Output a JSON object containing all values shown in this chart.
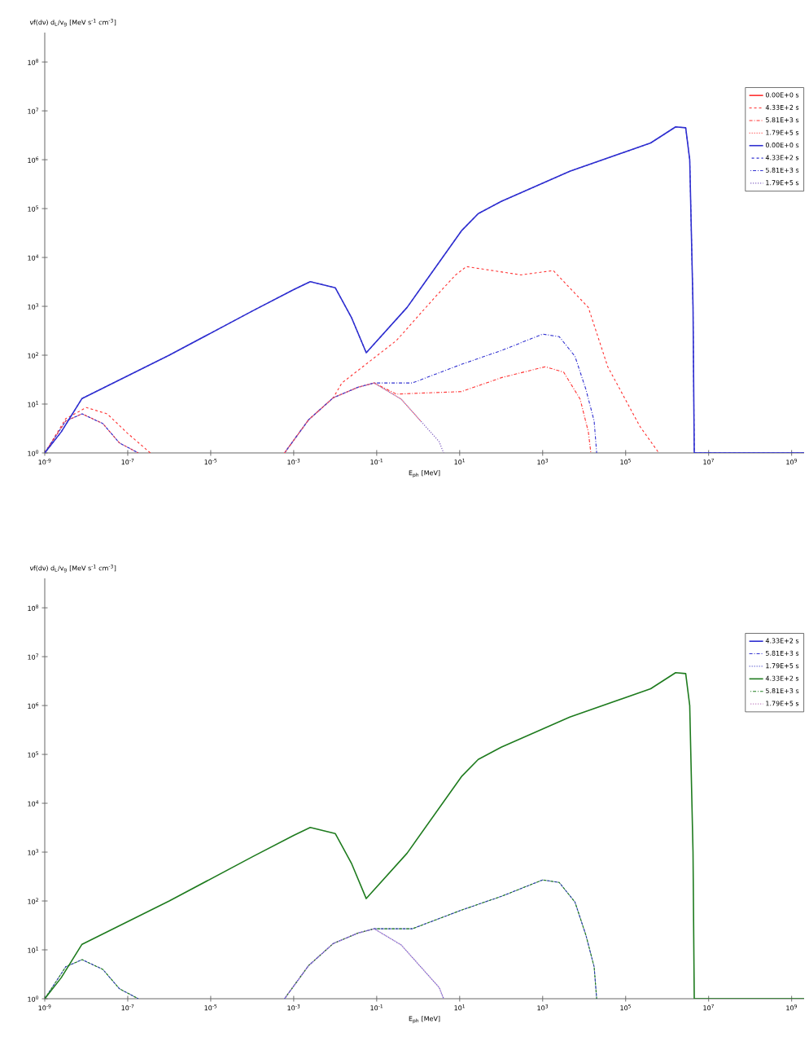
{
  "chart_data": [
    {
      "type": "line",
      "log": "xy",
      "xlabel": "E$_{ph}$ [MeV]",
      "ylabel": "νf(dν) d$_{L}$/v$_{g}$ [MeV s$^{-1}$ cm$^{-3}$]",
      "legend": "top right",
      "xlim": [
        1e-09,
        2000000000.0
      ],
      "ylim": [
        1,
        400000000.0
      ],
      "xticks": [
        {
          "value": 1e-09,
          "label": "10$^{-9}$"
        },
        {
          "value": 1e-07,
          "label": "10$^{-7}$"
        },
        {
          "value": 1e-05,
          "label": "10$^{-5}$"
        },
        {
          "value": 0.001,
          "label": "10$^{-3}$"
        },
        {
          "value": 0.1,
          "label": "10$^{-1}$"
        },
        {
          "value": 10,
          "label": "10$^{1}$"
        },
        {
          "value": 1000,
          "label": "10$^{3}$"
        },
        {
          "value": 100000.0,
          "label": "10$^{5}$"
        },
        {
          "value": 10000000.0,
          "label": "10$^{7}$"
        },
        {
          "value": 1000000000.0,
          "label": "10$^{9}$"
        }
      ],
      "yticks": [
        {
          "value": 1,
          "label": "10$^{0}$"
        },
        {
          "value": 10,
          "label": "10$^{1}$"
        },
        {
          "value": 100,
          "label": "10$^{2}$"
        },
        {
          "value": 1000,
          "label": "10$^{3}$"
        },
        {
          "value": 10000.0,
          "label": "10$^{4}$"
        },
        {
          "value": 100000.0,
          "label": "10$^{5}$"
        },
        {
          "value": 1000000.0,
          "label": "10$^{6}$"
        },
        {
          "value": 10000000.0,
          "label": "10$^{7}$"
        },
        {
          "value": 100000000.0,
          "label": "10$^{8}$"
        }
      ],
      "series": [
        {
          "name": "0.00E+0 s",
          "color": "#ff3030",
          "line_style": "solid"
        },
        {
          "name": "4.33E+2 s",
          "color": "#ff3030",
          "line_style": "dashed",
          "x": [
            1e-09,
            3.2e-09,
            1e-08,
            3.2e-08,
            1e-07,
            3.5e-07,
            1e-05,
            0.0006,
            0.0023,
            0.009,
            0.0145,
            0.3,
            2.3,
            8,
            14.5,
            300,
            1800,
            12600,
            37000,
            220000.0,
            630000.0
          ],
          "values": [
            1,
            5,
            8.5,
            6.3,
            2.5,
            1,
            null,
            1,
            4.8,
            13.5,
            27,
            200,
            1400,
            4400,
            6500,
            4400,
            5400,
            950,
            58,
            3.5,
            1
          ]
        },
        {
          "name": "5.81E+3 s",
          "color": "#ff3030",
          "line_style": "dashdot",
          "x": [
            1e-09,
            3.2e-09,
            7.9e-09,
            2.5e-08,
            6.3e-08,
            1.8e-07,
            1e-05,
            0.0006,
            0.0023,
            0.009,
            0.035,
            0.087,
            0.3,
            11,
            105,
            1150,
            3200,
            8000,
            12600,
            14500
          ],
          "values": [
            1,
            4.5,
            6.3,
            4,
            1.6,
            1,
            null,
            1,
            4.8,
            13.5,
            22,
            27,
            16,
            18,
            35,
            58,
            45,
            12.6,
            2.7,
            1
          ]
        },
        {
          "name": "1.79E+5 s",
          "color": "#ff6060",
          "line_style": "dotted",
          "x": [
            0.0006,
            0.0023,
            0.009,
            0.035,
            0.087,
            0.39,
            1.15
          ],
          "values": [
            1,
            4.8,
            13.5,
            22,
            27,
            12.6,
            4.5
          ]
        },
        {
          "name": "0.00E+0 s",
          "color": "#3030d0",
          "line_style": "solid",
          "x": [
            1e-09,
            2.5e-09,
            7.9e-09,
            1e-06,
            0.0001,
            0.001,
            0.0025,
            0.01,
            0.025,
            0.056,
            0.54,
            11,
            28,
            100,
            4500,
            400000.0,
            1600000.0,
            2800000.0,
            3500000.0,
            4200000.0,
            4500000.0,
            2000000000.0
          ],
          "values": [
            1,
            2.7,
            13,
            100,
            800,
            2200,
            3200,
            2400,
            575,
            112,
            950,
            35000,
            79000,
            140000,
            580000,
            2200000,
            4700000,
            4500000,
            1000000,
            1000,
            1,
            1
          ]
        },
        {
          "name": "4.33E+2 s",
          "color": "#3030d0",
          "line_style": "dashed",
          "x": [
            1e-09,
            2.5e-09,
            7.9e-09,
            1e-06,
            0.0001,
            0.001,
            0.0025,
            0.01,
            0.025,
            0.056,
            0.54,
            11,
            28,
            100,
            4500,
            400000.0,
            1600000.0,
            2800000.0,
            3500000.0,
            4200000.0,
            4500000.0,
            2000000000.0
          ],
          "values": [
            1,
            2.7,
            13,
            100,
            800,
            2200,
            3200,
            2400,
            575,
            112,
            950,
            35000,
            79000,
            140000,
            580000,
            2200000,
            4700000,
            4500000,
            1000000,
            1000,
            1,
            1
          ]
        },
        {
          "name": "5.81E+3 s",
          "color": "#3030d0",
          "line_style": "dashdot",
          "x": [
            1e-09,
            3.2e-09,
            7.9e-09,
            2.5e-08,
            6.3e-08,
            1.8e-07,
            1e-05,
            0.0006,
            0.0023,
            0.009,
            0.035,
            0.087,
            0.72,
            11,
            105,
            1000,
            2500,
            6000,
            11000,
            17400,
            20000
          ],
          "values": [
            1,
            4.5,
            6.3,
            4,
            1.6,
            1,
            null,
            1,
            4.8,
            13.5,
            22,
            27,
            27,
            65,
            126,
            270,
            240,
            95,
            20,
            4.5,
            1
          ]
        },
        {
          "name": "1.79E+5 s",
          "color": "#8060c0",
          "line_style": "dotted",
          "x": [
            0.0006,
            0.0023,
            0.009,
            0.035,
            0.087,
            0.39,
            1.15,
            3.2,
            4.1
          ],
          "values": [
            1,
            4.8,
            13.5,
            22,
            27,
            12.6,
            4.5,
            1.7,
            1
          ]
        }
      ]
    },
    {
      "type": "line",
      "log": "xy",
      "xlabel": "E$_{ph}$ [MeV]",
      "ylabel": "νf(dν) d$_{L}$/v$_{g}$ [MeV s$^{-1}$ cm$^{-3}$]",
      "legend": "top right",
      "xlim": [
        1e-09,
        2000000000.0
      ],
      "ylim": [
        1,
        400000000.0
      ],
      "xticks": [
        {
          "value": 1e-09,
          "label": "10$^{-9}$"
        },
        {
          "value": 1e-07,
          "label": "10$^{-7}$"
        },
        {
          "value": 1e-05,
          "label": "10$^{-5}$"
        },
        {
          "value": 0.001,
          "label": "10$^{-3}$"
        },
        {
          "value": 0.1,
          "label": "10$^{-1}$"
        },
        {
          "value": 10,
          "label": "10$^{1}$"
        },
        {
          "value": 1000,
          "label": "10$^{3}$"
        },
        {
          "value": 100000.0,
          "label": "10$^{5}$"
        },
        {
          "value": 10000000.0,
          "label": "10$^{7}$"
        },
        {
          "value": 1000000000.0,
          "label": "10$^{9}$"
        }
      ],
      "yticks": [
        {
          "value": 1,
          "label": "10$^{0}$"
        },
        {
          "value": 10,
          "label": "10$^{1}$"
        },
        {
          "value": 100,
          "label": "10$^{2}$"
        },
        {
          "value": 1000,
          "label": "10$^{3}$"
        },
        {
          "value": 10000.0,
          "label": "10$^{4}$"
        },
        {
          "value": 100000.0,
          "label": "10$^{5}$"
        },
        {
          "value": 1000000.0,
          "label": "10$^{6}$"
        },
        {
          "value": 10000000.0,
          "label": "10$^{7}$"
        },
        {
          "value": 100000000.0,
          "label": "10$^{8}$"
        }
      ],
      "series": [
        {
          "name": "4.33E+2 s",
          "color": "#3030d0",
          "line_style": "solid"
        },
        {
          "name": "5.81E+3 s",
          "color": "#3030d0",
          "line_style": "dashdot",
          "x": [
            1e-09,
            3.2e-09,
            7.9e-09,
            2.5e-08,
            6.3e-08,
            1.8e-07,
            1e-05,
            0.0006,
            0.0023,
            0.009,
            0.035,
            0.087,
            0.72,
            11,
            105,
            1000,
            2500,
            6000,
            11000,
            17400,
            20000
          ],
          "values": [
            1,
            4.5,
            6.3,
            4,
            1.6,
            1,
            null,
            1,
            4.8,
            13.5,
            22,
            27,
            27,
            65,
            126,
            270,
            240,
            95,
            20,
            4.5,
            1
          ]
        },
        {
          "name": "1.79E+5 s",
          "color": "#6060d0",
          "line_style": "dotted",
          "x": [
            0.0006,
            0.0023,
            0.009,
            0.035,
            0.087,
            0.39,
            1.15,
            3.2,
            4.1
          ],
          "values": [
            1,
            4.8,
            13.5,
            22,
            27,
            12.6,
            4.5,
            1.7,
            1
          ]
        },
        {
          "name": "4.33E+2 s",
          "color": "#1e7b1e",
          "line_style": "solid",
          "x": [
            1e-09,
            2.5e-09,
            7.9e-09,
            1e-06,
            0.0001,
            0.001,
            0.0025,
            0.01,
            0.025,
            0.056,
            0.54,
            11,
            28,
            100,
            4500,
            400000.0,
            1600000.0,
            2800000.0,
            3500000.0,
            4200000.0,
            4500000.0,
            2000000000.0
          ],
          "values": [
            1,
            2.7,
            13,
            100,
            800,
            2200,
            3200,
            2400,
            575,
            112,
            950,
            35000,
            79000,
            140000,
            580000,
            2200000,
            4700000,
            4500000,
            1000000,
            1000,
            1,
            1
          ]
        },
        {
          "name": "5.81E+3 s",
          "color": "#1e7b1e",
          "line_style": "dashdot",
          "x": [
            1e-09,
            3.2e-09,
            7.9e-09,
            2.5e-08,
            6.3e-08,
            1.8e-07,
            1e-05,
            0.0006,
            0.0023,
            0.009,
            0.035,
            0.087,
            0.72,
            11,
            105,
            1000,
            2500,
            6000,
            11000,
            17400,
            20000
          ],
          "values": [
            1,
            4.5,
            6.3,
            4,
            1.6,
            1,
            null,
            1,
            4.8,
            13.5,
            22,
            27,
            27,
            65,
            126,
            270,
            240,
            95,
            20,
            4.5,
            1
          ]
        },
        {
          "name": "1.79E+5 s",
          "color": "#c080c0",
          "line_style": "dotted",
          "x": [
            0.0006,
            0.0023,
            0.009,
            0.035,
            0.087,
            0.39,
            1.15,
            3.2,
            4.1
          ],
          "values": [
            1,
            4.8,
            13.5,
            22,
            27,
            12.6,
            4.5,
            1.7,
            1
          ]
        }
      ]
    }
  ]
}
